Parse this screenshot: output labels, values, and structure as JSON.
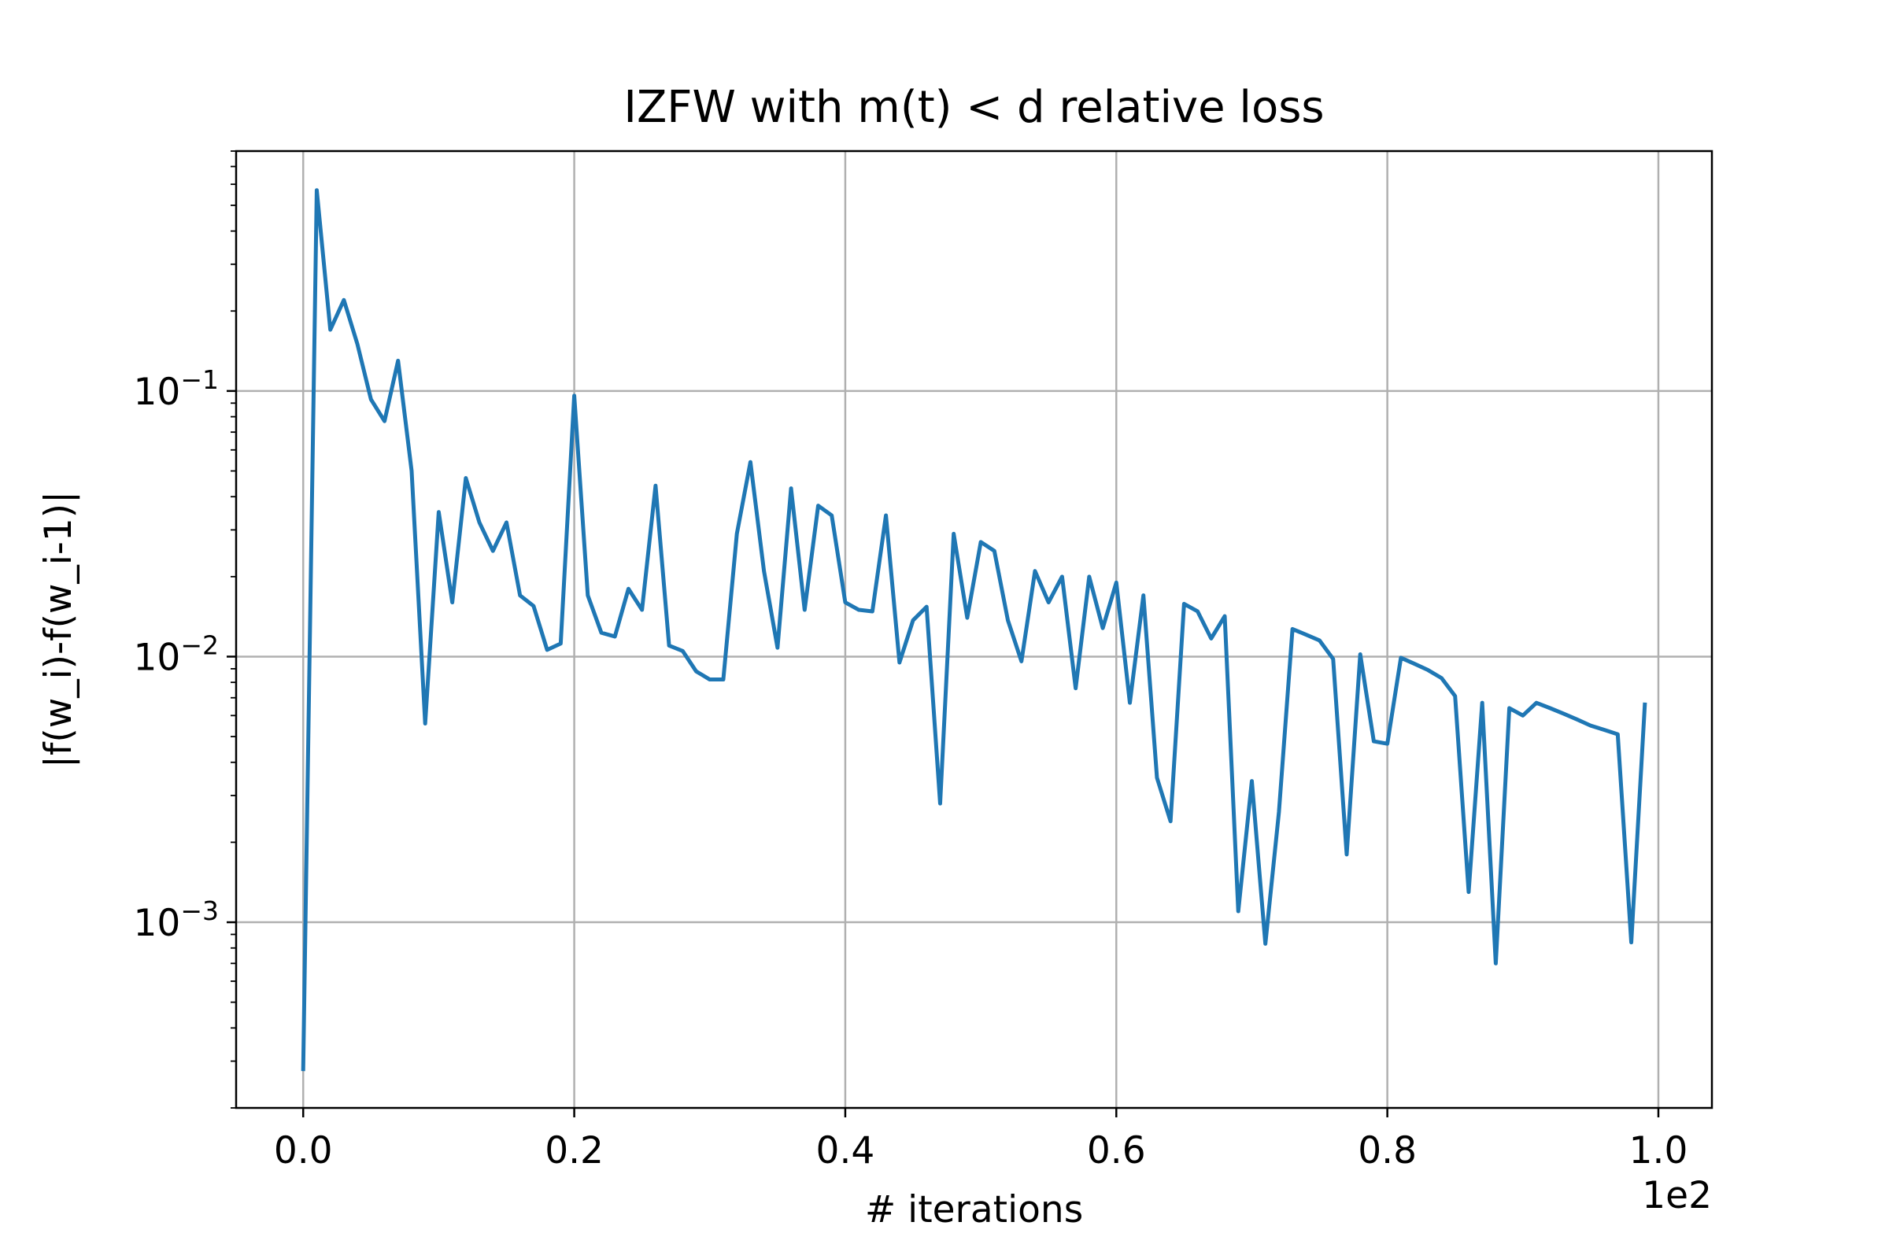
{
  "chart_data": {
    "type": "line",
    "title": "IZFW with m(t) < d relative loss",
    "xlabel": "# iterations",
    "ylabel": "|f(w_i)-f(w_i-1)|",
    "x_offset_text": "1e2",
    "yscale": "log",
    "grid": true,
    "legend": "none",
    "xlim": [
      -0.0495,
      1.0395
    ],
    "ylim": [
      0.0002,
      0.8
    ],
    "x_ticks": [
      {
        "value": 0.0,
        "label": "0.0"
      },
      {
        "value": 0.2,
        "label": "0.2"
      },
      {
        "value": 0.4,
        "label": "0.4"
      },
      {
        "value": 0.6,
        "label": "0.6"
      },
      {
        "value": 0.8,
        "label": "0.8"
      },
      {
        "value": 1.0,
        "label": "1.0"
      }
    ],
    "y_ticks": [
      {
        "value": 0.001,
        "base": "10",
        "exponent": "−3"
      },
      {
        "value": 0.01,
        "base": "10",
        "exponent": "−2"
      },
      {
        "value": 0.1,
        "base": "10",
        "exponent": "−1"
      }
    ],
    "series": [
      {
        "color": "#1f77b4",
        "x": [
          0.0,
          0.01,
          0.02,
          0.03,
          0.04,
          0.05,
          0.06,
          0.07,
          0.08,
          0.09,
          0.1,
          0.11,
          0.12,
          0.13,
          0.14,
          0.15,
          0.16,
          0.17,
          0.18,
          0.19,
          0.2,
          0.21,
          0.22,
          0.23,
          0.24,
          0.25,
          0.26,
          0.27,
          0.28,
          0.29,
          0.3,
          0.31,
          0.32,
          0.33,
          0.34,
          0.35,
          0.36,
          0.37,
          0.38,
          0.39,
          0.4,
          0.41,
          0.42,
          0.43,
          0.44,
          0.45,
          0.46,
          0.47,
          0.48,
          0.49,
          0.5,
          0.51,
          0.52,
          0.53,
          0.54,
          0.55,
          0.56,
          0.57,
          0.58,
          0.59,
          0.6,
          0.61,
          0.62,
          0.63,
          0.64,
          0.65,
          0.66,
          0.67,
          0.68,
          0.69,
          0.7,
          0.71,
          0.72,
          0.73,
          0.74,
          0.75,
          0.76,
          0.77,
          0.78,
          0.79,
          0.8,
          0.81,
          0.82,
          0.83,
          0.84,
          0.85,
          0.86,
          0.87,
          0.88,
          0.89,
          0.9,
          0.91,
          0.92,
          0.93,
          0.94,
          0.95,
          0.96,
          0.97,
          0.98,
          0.99
        ],
        "y": [
          0.00028,
          0.57,
          0.17,
          0.22,
          0.15,
          0.093,
          0.077,
          0.13,
          0.05,
          0.0056,
          0.035,
          0.016,
          0.047,
          0.032,
          0.025,
          0.032,
          0.017,
          0.0155,
          0.0106,
          0.0112,
          0.096,
          0.017,
          0.0123,
          0.0119,
          0.018,
          0.015,
          0.044,
          0.011,
          0.0105,
          0.0088,
          0.0082,
          0.0082,
          0.029,
          0.054,
          0.021,
          0.0108,
          0.043,
          0.015,
          0.037,
          0.034,
          0.016,
          0.015,
          0.0148,
          0.034,
          0.0095,
          0.0137,
          0.0154,
          0.0028,
          0.029,
          0.014,
          0.027,
          0.025,
          0.0137,
          0.0096,
          0.021,
          0.016,
          0.02,
          0.0076,
          0.02,
          0.0128,
          0.019,
          0.0067,
          0.017,
          0.0035,
          0.0024,
          0.0158,
          0.0148,
          0.0117,
          0.0142,
          0.0011,
          0.0034,
          0.00083,
          0.0026,
          0.0127,
          0.0121,
          0.0115,
          0.0098,
          0.0018,
          0.0102,
          0.0048,
          0.0047,
          0.0099,
          0.0094,
          0.0089,
          0.0083,
          0.0071,
          0.0013,
          0.0067,
          0.0007,
          0.0064,
          0.006,
          0.0067,
          0.0064,
          0.0061,
          0.0058,
          0.0055,
          0.0053,
          0.0051,
          0.00084,
          0.0066
        ]
      }
    ]
  }
}
